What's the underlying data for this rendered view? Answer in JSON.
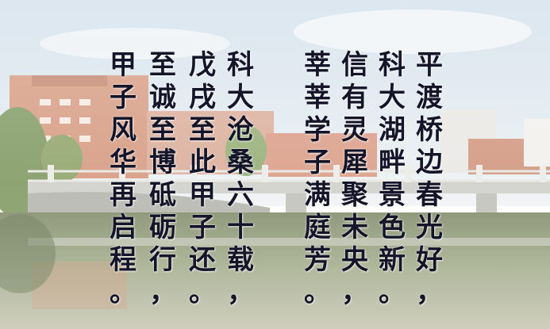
{
  "scene": {
    "description_icon": "campus-bridge-photo",
    "colors": {
      "sky": "#dbe6ef",
      "water": "#8a9a72",
      "building": "#d98e6f",
      "bridge": "#c9c9c4"
    }
  },
  "poem": {
    "columns": [
      {
        "id": "col-1",
        "text": "平渡桥边春光好，"
      },
      {
        "id": "col-2",
        "text": "科大湖畔景色新。"
      },
      {
        "id": "col-3",
        "text": "信有灵犀聚未央，"
      },
      {
        "id": "col-4",
        "text": "莘莘学子满庭芳。"
      },
      {
        "id": "col-5",
        "text": "科大沧桑六十载，"
      },
      {
        "id": "col-6",
        "text": "戊戌至此甲子还。"
      },
      {
        "id": "col-7",
        "text": "至诚至博砥砺行，"
      },
      {
        "id": "col-8",
        "text": "甲子风华再启程。"
      }
    ]
  }
}
